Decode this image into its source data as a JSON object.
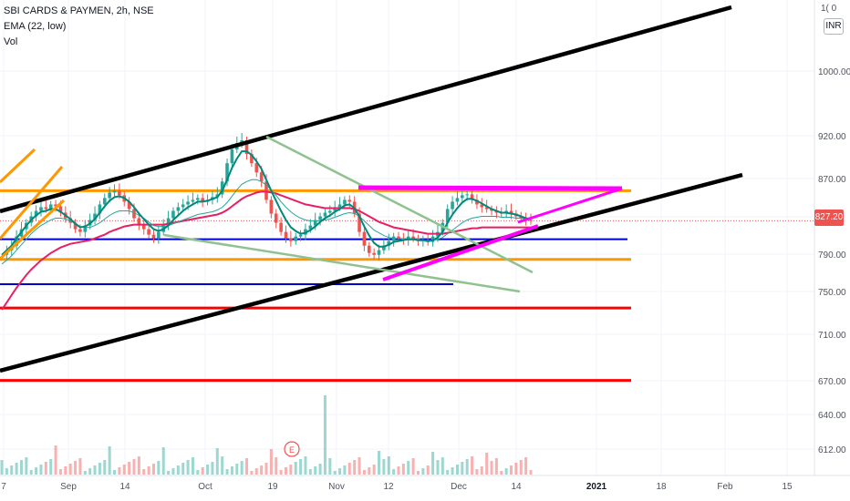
{
  "legend": {
    "symbol": "SBI CARDS & PAYMEN, 2h, NSE",
    "ema": "EMA (22, low)",
    "vol": "Vol"
  },
  "currency_button": "INR",
  "top_tick_fragment": "1( 0",
  "last_price_label": "827.20",
  "earnings_marker": "E",
  "chart_data": {
    "type": "candlestick",
    "x_axis_labels": [
      "7",
      "Sep",
      "14",
      "Oct",
      "19",
      "Nov",
      "12",
      "Dec",
      "14",
      "2021",
      "18",
      "Feb",
      "15"
    ],
    "y_axis_labels": [
      "1000.00",
      "920.00",
      "870.00",
      "830.00",
      "790.00",
      "750.00",
      "710.00",
      "670.00",
      "640.00",
      "612.00"
    ],
    "y_axis_values": [
      1000,
      920,
      870,
      830,
      790,
      750,
      710,
      670,
      640,
      612
    ],
    "last_price": 827.2,
    "horizontal_levels": [
      {
        "price": 860,
        "color": "#ff9800"
      },
      {
        "price": 807,
        "color": "#0000cc"
      },
      {
        "price": 785,
        "color": "#ff9800"
      },
      {
        "price": 758,
        "color": "#0000cc"
      },
      {
        "price": 732,
        "color": "#ff0000"
      },
      {
        "price": 653,
        "color": "#ff0000"
      }
    ],
    "close_series": [
      790,
      795,
      800,
      810,
      818,
      825,
      832,
      838,
      842,
      840,
      845,
      843,
      836,
      830,
      825,
      818,
      815,
      822,
      828,
      835,
      845,
      852,
      858,
      860,
      855,
      848,
      840,
      830,
      822,
      818,
      812,
      808,
      815,
      822,
      830,
      838,
      842,
      845,
      848,
      850,
      852,
      848,
      850,
      853,
      856,
      870,
      890,
      905,
      912,
      915,
      900,
      890,
      880,
      870,
      850,
      835,
      825,
      815,
      808,
      805,
      810,
      812,
      818,
      822,
      828,
      832,
      836,
      838,
      842,
      845,
      850,
      848,
      835,
      815,
      800,
      792,
      790,
      795,
      800,
      805,
      810,
      808,
      806,
      810,
      808,
      805,
      806,
      804,
      810,
      815,
      825,
      840,
      848,
      852,
      855,
      856,
      850,
      845,
      842,
      840,
      838,
      836,
      835,
      838,
      835,
      832,
      830,
      828,
      827
    ],
    "ema22_low_series": [
      780,
      784,
      789,
      795,
      801,
      807,
      813,
      818,
      822,
      825,
      828,
      830,
      830,
      829,
      827,
      824,
      821,
      820,
      820,
      822,
      825,
      829,
      833,
      836,
      838,
      838,
      838,
      836,
      833,
      830,
      826,
      822,
      821,
      821,
      822,
      824,
      826,
      828,
      830,
      832,
      834,
      835,
      836,
      837,
      839,
      842,
      847,
      854,
      861,
      867,
      870,
      872,
      872,
      870,
      866,
      861,
      855,
      848,
      842,
      837,
      833,
      830,
      828,
      827,
      827,
      827,
      828,
      829,
      831,
      833,
      835,
      836,
      835,
      832,
      827,
      822,
      817,
      814,
      811,
      809,
      808,
      808,
      807,
      807,
      807,
      807,
      806,
      806,
      806,
      807,
      809,
      813,
      817,
      821,
      825,
      828,
      830,
      831,
      832,
      832,
      832,
      832,
      831,
      831,
      831,
      830,
      830,
      829,
      829
    ],
    "sma_series": [
      790,
      795,
      800,
      808,
      815,
      822,
      828,
      833,
      837,
      838,
      840,
      840,
      837,
      833,
      829,
      824,
      820,
      821,
      824,
      829,
      836,
      843,
      849,
      853,
      854,
      852,
      848,
      842,
      835,
      829,
      823,
      818,
      816,
      818,
      822,
      828,
      833,
      838,
      842,
      845,
      848,
      848,
      849,
      851,
      853,
      860,
      872,
      885,
      895,
      903,
      903,
      899,
      892,
      884,
      872,
      860,
      849,
      838,
      828,
      820,
      816,
      813,
      814,
      817,
      821,
      826,
      830,
      833,
      837,
      840,
      844,
      845,
      841,
      832,
      821,
      811,
      803,
      799,
      799,
      801,
      804,
      805,
      806,
      807,
      807,
      806,
      806,
      805,
      806,
      809,
      815,
      825,
      834,
      841,
      847,
      851,
      851,
      849,
      846,
      843,
      840,
      838,
      836,
      836,
      835,
      834,
      832,
      830,
      829
    ],
    "long_ema_series": [
      730,
      738,
      746,
      754,
      761,
      768,
      774,
      779,
      784,
      788,
      792,
      795,
      798,
      800,
      802,
      803,
      804,
      805,
      806,
      808,
      810,
      812,
      815,
      817,
      819,
      821,
      822,
      823,
      823,
      823,
      823,
      823,
      823,
      823,
      824,
      825,
      826,
      827,
      828,
      829,
      830,
      831,
      832,
      833,
      834,
      836,
      839,
      843,
      847,
      851,
      854,
      856,
      858,
      859,
      859,
      858,
      857,
      855,
      853,
      851,
      849,
      847,
      845,
      844,
      843,
      842,
      841,
      841,
      841,
      841,
      841,
      841,
      840,
      838,
      835,
      832,
      829,
      826,
      824,
      822,
      820,
      819,
      818,
      817,
      816,
      815,
      814,
      813,
      813,
      813,
      813,
      814,
      815,
      816,
      817,
      818,
      819,
      819,
      820,
      820,
      820,
      820,
      820,
      820,
      820,
      820,
      820,
      820,
      820
    ],
    "annotations": [
      {
        "type": "channel-line",
        "color": "#000000",
        "label": "upper channel"
      },
      {
        "type": "channel-line",
        "color": "#000000",
        "label": "lower channel"
      },
      {
        "type": "triangle",
        "color": "#ff00ff",
        "label": "ascending triangle"
      },
      {
        "type": "trendline",
        "color": "#90c290",
        "label": "falling wedge"
      }
    ]
  }
}
